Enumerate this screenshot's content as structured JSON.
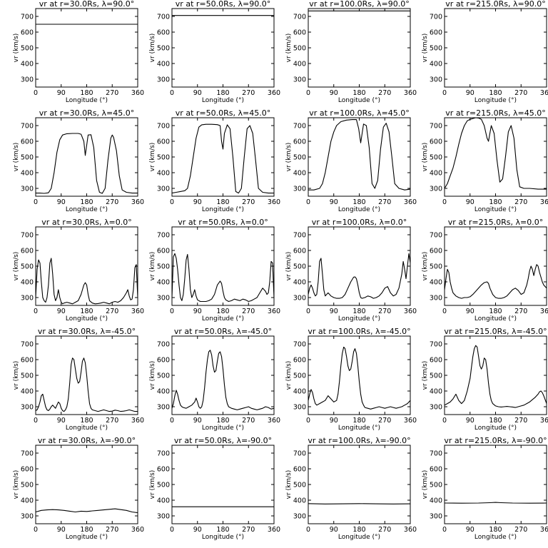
{
  "chart_data": {
    "type": "line",
    "xlabel": "Longitude (°)",
    "ylabel": "vr (km/s)",
    "xlim": [
      0,
      360
    ],
    "ylim": [
      250,
      750
    ],
    "xticks": [
      0,
      90,
      180,
      270,
      360
    ],
    "yticks": [
      300,
      400,
      500,
      600,
      700
    ],
    "grid": false,
    "panels": [
      {
        "title": "vr at r=30.0Rs, λ=90.0°",
        "x": [
          0,
          360
        ],
        "y": [
          650,
          650
        ]
      },
      {
        "title": "vr at r=50.0Rs, λ=90.0°",
        "x": [
          0,
          360
        ],
        "y": [
          706,
          706
        ]
      },
      {
        "title": "vr at r=100.0Rs, λ=90.0°",
        "x": [
          0,
          360
        ],
        "y": [
          735,
          735
        ]
      },
      {
        "title": "vr at r=215.0Rs, λ=90.0°",
        "x": [
          0,
          360
        ],
        "y": [
          750,
          750
        ]
      },
      {
        "title": "vr at r=30.0Rs, λ=45.0°",
        "x": [
          0,
          15,
          30,
          45,
          55,
          65,
          75,
          85,
          95,
          110,
          130,
          150,
          160,
          170,
          175,
          185,
          195,
          205,
          215,
          225,
          235,
          245,
          255,
          265,
          270,
          275,
          285,
          295,
          305,
          320,
          340,
          360
        ],
        "y": [
          270,
          270,
          268,
          272,
          300,
          400,
          530,
          610,
          640,
          648,
          650,
          650,
          645,
          600,
          510,
          640,
          642,
          560,
          350,
          275,
          268,
          300,
          480,
          620,
          640,
          625,
          540,
          380,
          290,
          275,
          270,
          270
        ]
      },
      {
        "title": "vr at r=50.0Rs, λ=45.0°",
        "x": [
          0,
          15,
          30,
          45,
          55,
          65,
          75,
          85,
          95,
          105,
          120,
          140,
          160,
          170,
          175,
          180,
          185,
          195,
          205,
          215,
          225,
          235,
          245,
          255,
          265,
          275,
          285,
          295,
          305,
          320,
          340,
          360
        ],
        "y": [
          270,
          275,
          280,
          285,
          300,
          380,
          500,
          620,
          690,
          705,
          708,
          708,
          706,
          700,
          600,
          550,
          650,
          705,
          680,
          500,
          280,
          270,
          300,
          500,
          680,
          700,
          650,
          480,
          300,
          275,
          270,
          270
        ]
      },
      {
        "title": "vr at r=100.0Rs, λ=45.0°",
        "x": [
          0,
          20,
          40,
          50,
          60,
          70,
          80,
          90,
          100,
          115,
          135,
          155,
          170,
          178,
          185,
          195,
          205,
          215,
          225,
          235,
          245,
          255,
          265,
          275,
          285,
          295,
          305,
          320,
          340,
          360
        ],
        "y": [
          290,
          290,
          300,
          330,
          400,
          500,
          600,
          660,
          700,
          725,
          735,
          738,
          738,
          680,
          590,
          710,
          700,
          560,
          330,
          300,
          350,
          550,
          690,
          715,
          660,
          500,
          330,
          300,
          290,
          295
        ]
      },
      {
        "title": "vr at r=215.0Rs, λ=45.0°",
        "x": [
          0,
          10,
          20,
          30,
          40,
          50,
          60,
          70,
          80,
          90,
          100,
          110,
          120,
          130,
          140,
          150,
          155,
          165,
          175,
          185,
          195,
          205,
          215,
          225,
          235,
          245,
          255,
          265,
          280,
          300,
          330,
          360
        ],
        "y": [
          300,
          330,
          380,
          430,
          500,
          580,
          650,
          700,
          730,
          740,
          745,
          750,
          748,
          740,
          700,
          620,
          600,
          700,
          650,
          480,
          340,
          360,
          500,
          660,
          700,
          620,
          420,
          310,
          300,
          300,
          295,
          295
        ]
      },
      {
        "title": "vr at r=30.0Rs, λ=0.0°",
        "x": [
          0,
          5,
          10,
          15,
          20,
          25,
          30,
          35,
          40,
          45,
          50,
          55,
          60,
          65,
          70,
          75,
          80,
          85,
          90,
          95,
          100,
          110,
          120,
          130,
          140,
          150,
          160,
          170,
          175,
          180,
          185,
          190,
          200,
          210,
          220,
          230,
          240,
          250,
          260,
          270,
          280,
          290,
          300,
          310,
          320,
          325,
          330,
          335,
          340,
          345,
          350,
          355,
          360
        ],
        "y": [
          300,
          480,
          540,
          520,
          400,
          300,
          280,
          270,
          300,
          380,
          520,
          550,
          450,
          320,
          280,
          300,
          350,
          300,
          270,
          260,
          265,
          270,
          265,
          260,
          270,
          280,
          320,
          380,
          395,
          380,
          320,
          280,
          265,
          260,
          262,
          265,
          270,
          265,
          260,
          270,
          275,
          270,
          280,
          300,
          330,
          350,
          310,
          285,
          290,
          350,
          490,
          510,
          300
        ]
      },
      {
        "title": "vr at r=50.0Rs, λ=0.0°",
        "x": [
          0,
          5,
          10,
          15,
          20,
          25,
          30,
          35,
          40,
          45,
          50,
          55,
          60,
          65,
          70,
          75,
          80,
          85,
          90,
          100,
          110,
          120,
          130,
          140,
          150,
          160,
          170,
          175,
          180,
          185,
          190,
          200,
          210,
          220,
          230,
          240,
          250,
          260,
          270,
          280,
          290,
          300,
          310,
          320,
          330,
          335,
          340,
          345,
          350,
          355,
          360
        ],
        "y": [
          300,
          560,
          580,
          550,
          480,
          380,
          300,
          280,
          320,
          420,
          540,
          575,
          480,
          350,
          300,
          320,
          350,
          310,
          285,
          275,
          275,
          275,
          280,
          290,
          320,
          380,
          405,
          390,
          340,
          300,
          285,
          275,
          280,
          290,
          285,
          280,
          290,
          285,
          275,
          280,
          290,
          300,
          330,
          360,
          340,
          320,
          330,
          400,
          530,
          520,
          300
        ]
      },
      {
        "title": "vr at r=100.0Rs, λ=0.0°",
        "x": [
          0,
          5,
          10,
          15,
          20,
          25,
          30,
          35,
          40,
          45,
          50,
          55,
          60,
          70,
          80,
          90,
          100,
          110,
          120,
          130,
          140,
          150,
          160,
          165,
          170,
          175,
          180,
          185,
          190,
          200,
          210,
          220,
          230,
          240,
          250,
          260,
          270,
          280,
          290,
          300,
          310,
          320,
          330,
          335,
          340,
          345,
          350,
          355,
          360
        ],
        "y": [
          320,
          360,
          380,
          360,
          330,
          310,
          320,
          400,
          530,
          550,
          450,
          350,
          310,
          330,
          310,
          300,
          295,
          295,
          300,
          320,
          360,
          400,
          430,
          432,
          420,
          380,
          330,
          300,
          295,
          300,
          310,
          305,
          295,
          300,
          310,
          330,
          360,
          370,
          330,
          310,
          320,
          360,
          450,
          530,
          480,
          420,
          500,
          580,
          520
        ]
      },
      {
        "title": "vr at r=215.0Rs, λ=0.0°",
        "x": [
          0,
          5,
          10,
          15,
          20,
          25,
          30,
          40,
          50,
          60,
          70,
          80,
          90,
          100,
          110,
          120,
          130,
          140,
          150,
          155,
          160,
          170,
          180,
          190,
          200,
          210,
          220,
          230,
          240,
          250,
          260,
          270,
          280,
          290,
          295,
          300,
          305,
          310,
          315,
          320,
          325,
          330,
          335,
          340,
          345,
          350,
          355,
          360
        ],
        "y": [
          350,
          420,
          480,
          460,
          400,
          360,
          330,
          310,
          300,
          295,
          300,
          300,
          305,
          320,
          340,
          360,
          380,
          395,
          400,
          390,
          360,
          320,
          300,
          295,
          295,
          300,
          310,
          330,
          350,
          360,
          345,
          320,
          330,
          380,
          420,
          470,
          500,
          480,
          440,
          480,
          510,
          500,
          460,
          430,
          400,
          380,
          370,
          360
        ]
      },
      {
        "title": "vr at r=30.0Rs, λ=-45.0°",
        "x": [
          0,
          5,
          10,
          15,
          20,
          25,
          30,
          35,
          40,
          45,
          50,
          55,
          60,
          65,
          70,
          75,
          80,
          85,
          90,
          95,
          100,
          105,
          110,
          115,
          120,
          125,
          130,
          135,
          140,
          145,
          150,
          155,
          160,
          165,
          170,
          175,
          180,
          185,
          190,
          195,
          200,
          210,
          220,
          230,
          240,
          250,
          260,
          270,
          280,
          290,
          300,
          310,
          320,
          330,
          340,
          350,
          360
        ],
        "y": [
          275,
          280,
          300,
          330,
          370,
          380,
          340,
          300,
          280,
          275,
          285,
          300,
          310,
          300,
          290,
          310,
          330,
          320,
          290,
          275,
          270,
          280,
          300,
          350,
          450,
          570,
          610,
          600,
          540,
          480,
          450,
          460,
          520,
          590,
          610,
          580,
          500,
          400,
          320,
          290,
          280,
          275,
          270,
          275,
          280,
          275,
          270,
          272,
          278,
          275,
          270,
          272,
          275,
          280,
          275,
          270,
          270
        ]
      },
      {
        "title": "vr at r=50.0Rs, λ=-45.0°",
        "x": [
          0,
          5,
          10,
          15,
          20,
          25,
          30,
          35,
          40,
          50,
          60,
          70,
          80,
          85,
          90,
          95,
          100,
          105,
          110,
          115,
          120,
          125,
          130,
          135,
          140,
          145,
          150,
          155,
          160,
          165,
          170,
          175,
          180,
          185,
          190,
          195,
          200,
          210,
          220,
          230,
          240,
          250,
          260,
          270,
          280,
          290,
          300,
          310,
          320,
          330,
          340,
          350,
          360
        ],
        "y": [
          290,
          320,
          370,
          405,
          380,
          340,
          310,
          300,
          295,
          290,
          300,
          310,
          330,
          355,
          330,
          300,
          290,
          300,
          340,
          420,
          520,
          600,
          650,
          660,
          630,
          560,
          520,
          530,
          590,
          640,
          650,
          620,
          540,
          440,
          360,
          320,
          300,
          290,
          285,
          280,
          285,
          290,
          295,
          300,
          290,
          285,
          280,
          285,
          290,
          300,
          295,
          285,
          290
        ]
      },
      {
        "title": "vr at r=100.0Rs, λ=-45.0°",
        "x": [
          0,
          5,
          10,
          15,
          20,
          25,
          30,
          40,
          50,
          60,
          70,
          80,
          90,
          100,
          105,
          110,
          115,
          120,
          125,
          130,
          135,
          140,
          145,
          150,
          155,
          160,
          165,
          170,
          175,
          180,
          185,
          190,
          195,
          200,
          210,
          220,
          230,
          240,
          250,
          260,
          270,
          280,
          290,
          300,
          310,
          320,
          330,
          340,
          350,
          360
        ],
        "y": [
          340,
          380,
          410,
          390,
          350,
          320,
          310,
          320,
          330,
          340,
          370,
          350,
          330,
          340,
          380,
          460,
          560,
          640,
          680,
          670,
          620,
          560,
          530,
          540,
          590,
          650,
          670,
          640,
          560,
          460,
          380,
          330,
          310,
          295,
          290,
          285,
          290,
          295,
          300,
          295,
          290,
          295,
          300,
          295,
          290,
          295,
          300,
          310,
          320,
          340
        ]
      },
      {
        "title": "vr at r=215.0Rs, λ=-45.0°",
        "x": [
          0,
          10,
          20,
          30,
          40,
          50,
          60,
          70,
          80,
          90,
          95,
          100,
          105,
          110,
          115,
          120,
          125,
          130,
          135,
          140,
          145,
          150,
          155,
          160,
          165,
          170,
          180,
          190,
          200,
          210,
          220,
          230,
          240,
          250,
          260,
          270,
          280,
          290,
          300,
          310,
          320,
          330,
          335,
          340,
          345,
          350,
          355,
          360
        ],
        "y": [
          310,
          320,
          330,
          350,
          380,
          340,
          320,
          340,
          400,
          480,
          550,
          620,
          670,
          690,
          680,
          620,
          560,
          540,
          560,
          610,
          600,
          540,
          450,
          380,
          340,
          320,
          305,
          300,
          298,
          300,
          302,
          300,
          298,
          295,
          300,
          305,
          310,
          320,
          330,
          345,
          360,
          380,
          395,
          400,
          390,
          370,
          345,
          320
        ]
      },
      {
        "title": "vr at r=30.0Rs, λ=-90.0°",
        "x": [
          0,
          20,
          40,
          60,
          80,
          100,
          120,
          140,
          160,
          180,
          200,
          220,
          240,
          260,
          280,
          300,
          320,
          340,
          360
        ],
        "y": [
          325,
          335,
          338,
          340,
          338,
          335,
          330,
          325,
          330,
          328,
          332,
          335,
          338,
          342,
          345,
          340,
          335,
          325,
          320
        ]
      },
      {
        "title": "vr at r=50.0Rs, λ=-90.0°",
        "x": [
          0,
          360
        ],
        "y": [
          358,
          358
        ]
      },
      {
        "title": "vr at r=100.0Rs, λ=-90.0°",
        "x": [
          0,
          60,
          120,
          180,
          240,
          300,
          360
        ],
        "y": [
          378,
          376,
          377,
          378,
          377,
          376,
          377
        ]
      },
      {
        "title": "vr at r=215.0Rs, λ=-90.0°",
        "x": [
          0,
          60,
          120,
          160,
          180,
          200,
          240,
          300,
          360
        ],
        "y": [
          382,
          381,
          382,
          384,
          386,
          384,
          382,
          381,
          382
        ]
      }
    ]
  }
}
